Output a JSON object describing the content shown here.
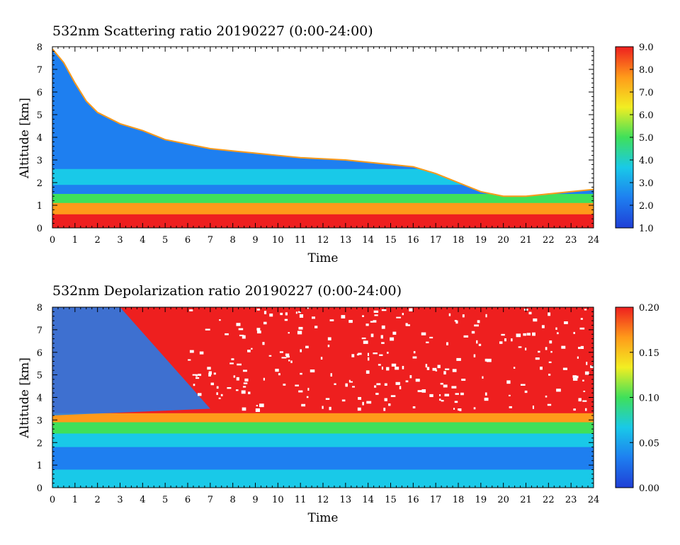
{
  "colors": {
    "background": "#ffffff",
    "axis": "#000000",
    "colormap": [
      "#1f3fd6",
      "#1e7ff0",
      "#19c9e8",
      "#3fe05a",
      "#f2ee22",
      "#ff9a1a",
      "#ee1f1f"
    ]
  },
  "chart_data": [
    {
      "type": "heatmap",
      "title": "532nm Scattering ratio  20190227 (0:00-24:00)",
      "xlabel": "Time",
      "ylabel": "Altitude [km]",
      "x_ticks": [
        "0",
        "1",
        "2",
        "3",
        "4",
        "5",
        "6",
        "7",
        "8",
        "9",
        "10",
        "11",
        "12",
        "13",
        "14",
        "15",
        "16",
        "17",
        "18",
        "19",
        "20",
        "21",
        "22",
        "23",
        "24"
      ],
      "y_ticks": [
        "0",
        "1",
        "2",
        "3",
        "4",
        "5",
        "6",
        "7",
        "8"
      ],
      "xlim": [
        0,
        24
      ],
      "ylim": [
        0,
        8
      ],
      "colorbar": {
        "range": [
          1.0,
          9.0
        ],
        "ticks": [
          "1.0",
          "2.0",
          "3.0",
          "4.0",
          "5.0",
          "6.0",
          "7.0",
          "8.0",
          "9.0"
        ]
      },
      "cloud_base_km": [
        [
          0.0,
          7.9
        ],
        [
          0.5,
          7.3
        ],
        [
          1.0,
          6.4
        ],
        [
          1.5,
          5.6
        ],
        [
          2.0,
          5.1
        ],
        [
          3.0,
          4.6
        ],
        [
          4.0,
          4.3
        ],
        [
          5.0,
          3.9
        ],
        [
          6.0,
          3.7
        ],
        [
          7.0,
          3.5
        ],
        [
          8.0,
          3.4
        ],
        [
          9.0,
          3.3
        ],
        [
          10.0,
          3.2
        ],
        [
          11.0,
          3.1
        ],
        [
          12.0,
          3.05
        ],
        [
          13.0,
          3.0
        ],
        [
          14.0,
          2.9
        ],
        [
          15.0,
          2.8
        ],
        [
          16.0,
          2.7
        ],
        [
          17.0,
          2.4
        ],
        [
          18.0,
          2.0
        ],
        [
          19.0,
          1.6
        ],
        [
          20.0,
          1.4
        ],
        [
          21.0,
          1.4
        ],
        [
          22.0,
          1.5
        ],
        [
          23.0,
          1.6
        ],
        [
          24.0,
          1.7
        ]
      ]
    },
    {
      "type": "heatmap",
      "title": "532nm Depolarization ratio  20190227 (0:00-24:00)",
      "xlabel": "Time",
      "ylabel": "Altitude [km]",
      "x_ticks": [
        "0",
        "1",
        "2",
        "3",
        "4",
        "5",
        "6",
        "7",
        "8",
        "9",
        "10",
        "11",
        "12",
        "13",
        "14",
        "15",
        "16",
        "17",
        "18",
        "19",
        "20",
        "21",
        "22",
        "23",
        "24"
      ],
      "y_ticks": [
        "0",
        "1",
        "2",
        "3",
        "4",
        "5",
        "6",
        "7",
        "8"
      ],
      "xlim": [
        0,
        24
      ],
      "ylim": [
        0,
        8
      ],
      "colorbar": {
        "range": [
          0.0,
          0.2
        ],
        "ticks": [
          "0.00",
          "0.05",
          "0.10",
          "0.15",
          "0.20"
        ]
      }
    }
  ]
}
